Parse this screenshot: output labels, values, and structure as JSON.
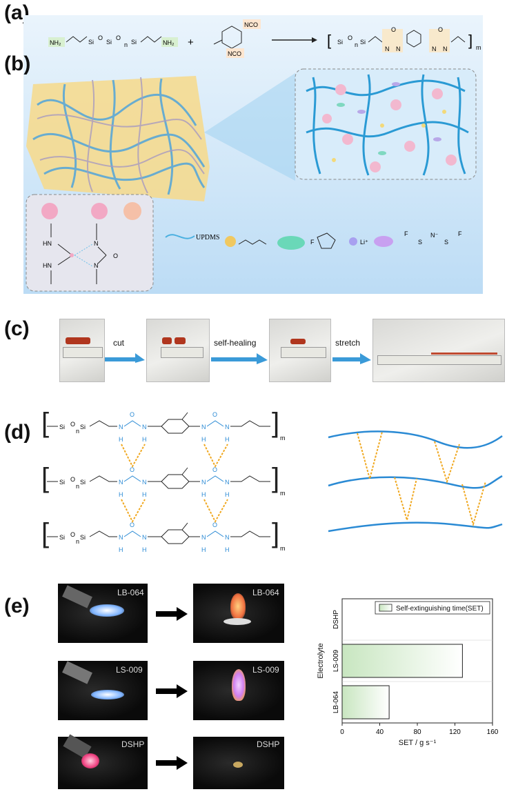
{
  "panels": {
    "a": "(a)",
    "b": "(b)",
    "c": "(c)",
    "d": "(d)",
    "e": "(e)"
  },
  "panel_a": {
    "reactant1_left_amine": "NH₂",
    "reactant1_right_amine": "NH₂",
    "plus": "+",
    "isocyanate_top": "NCO",
    "isocyanate_bottom": "NCO",
    "repeat_n": "n",
    "repeat_m": "m",
    "si": "Si",
    "o": "O",
    "n_atom": "N",
    "h_atom": "H"
  },
  "panel_b": {
    "legend_updms": "UPDMS",
    "legend_li": "Li⁺",
    "urea_hn": "HN",
    "urea_n": "N",
    "urea_o": "O",
    "urea_c_f": "F",
    "tfsi_f": "F",
    "tfsi_s": "S",
    "tfsi_n": "N⁻"
  },
  "panel_c": {
    "step1": "cut",
    "step2": "self-healing",
    "step3": "stretch"
  },
  "panel_d": {
    "m": "m",
    "n": "n",
    "si": "Si",
    "o": "O",
    "n_atom": "N",
    "h_atom": "H"
  },
  "panel_e": {
    "photo_labels": [
      "LB-064",
      "LB-064",
      "LS-009",
      "LS-009",
      "DSHP",
      "DSHP"
    ]
  },
  "chart_data": {
    "type": "bar",
    "orientation": "horizontal",
    "categories": [
      "DSHP",
      "LS-009",
      "LB-064"
    ],
    "series": [
      {
        "name": "Self-extinguishing time(SET)",
        "values": [
          0,
          128,
          50
        ]
      }
    ],
    "xlabel": "SET / g s⁻¹",
    "ylabel": "Electrolyte",
    "xlim": [
      0,
      160
    ],
    "xticks": [
      0,
      40,
      80,
      120,
      160
    ],
    "legend_position": "top-right",
    "bar_color": "#c8e6c0",
    "grid": false
  }
}
